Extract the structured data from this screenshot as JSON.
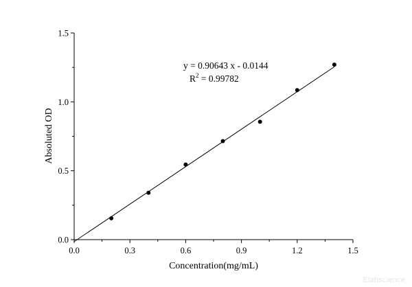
{
  "chart_data": {
    "type": "scatter",
    "xlabel": "Concentration(mg/mL)",
    "ylabel": "Absoluted OD",
    "xlim": [
      0,
      1.5
    ],
    "ylim": [
      0,
      1.5
    ],
    "xticks": [
      "0.0",
      "0.3",
      "0.6",
      "0.9",
      "1.2",
      "1.5"
    ],
    "yticks": [
      "0.0",
      "0.5",
      "1.0",
      "1.5"
    ],
    "grid": false,
    "points": {
      "x": [
        0.2,
        0.4,
        0.6,
        0.8,
        1.0,
        1.2,
        1.4
      ],
      "y": [
        0.155,
        0.34,
        0.545,
        0.715,
        0.855,
        1.085,
        1.27
      ]
    },
    "fit_line": {
      "slope": 0.90643,
      "intercept": -0.0144,
      "x_range": [
        0.0,
        1.4
      ],
      "equation_label": "y = 0.90643 x - 0.0144",
      "r2_prefix": "R",
      "r2_sup": "2",
      "r2_value": " = 0.99782"
    }
  },
  "watermark": "Elabscience"
}
